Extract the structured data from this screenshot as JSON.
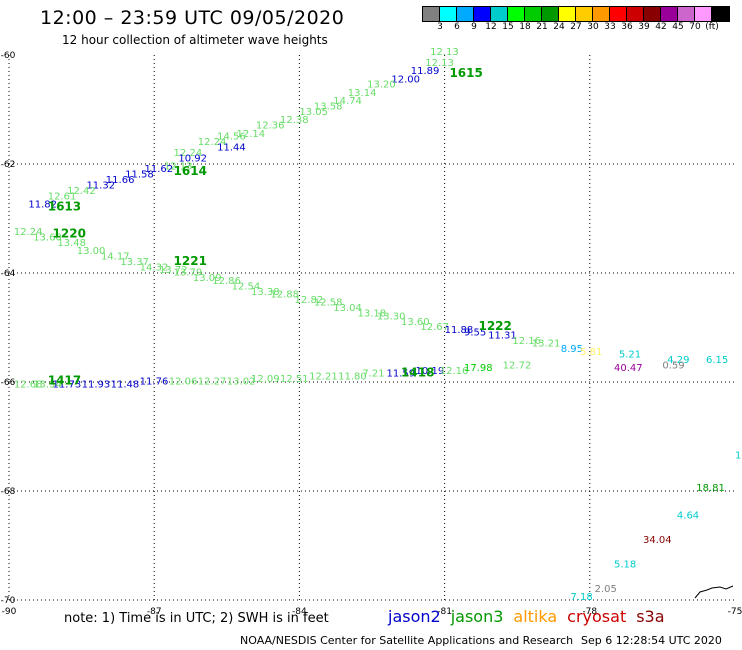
{
  "header": {
    "title": "12:00 – 23:59 UTC 09/05/2020",
    "subtitle": "12 hour collection of altimeter wave heights"
  },
  "colorbar": {
    "colors": [
      "#808080",
      "#00ffff",
      "#00aaff",
      "#0000ff",
      "#00cccc",
      "#00ff00",
      "#00cc00",
      "#009900",
      "#ffff00",
      "#ffcc00",
      "#ff9900",
      "#ff0000",
      "#cc0000",
      "#880000",
      "#990099",
      "#cc66cc",
      "#ff99ff",
      "#000000"
    ],
    "labels": [
      "3",
      "6",
      "9",
      "12",
      "15",
      "18",
      "21",
      "24",
      "27",
      "30",
      "33",
      "36",
      "39",
      "42",
      "45",
      "70",
      "(ft)"
    ]
  },
  "footer": {
    "note": "note: 1) Time is in UTC; 2) SWH is in feet",
    "credit": "NOAA/NESDIS Center for Satellite Applications and Research",
    "timestamp": "Sep  6 12:28:54 UTC 2020"
  },
  "legend": [
    {
      "name": "jason2",
      "color": "#0000cc"
    },
    {
      "name": "jason3",
      "color": "#009900"
    },
    {
      "name": "altika",
      "color": "#ff9900"
    },
    {
      "name": "cryosat",
      "color": "#cc0000"
    },
    {
      "name": "s3a",
      "color": "#880000"
    }
  ],
  "chart_data": {
    "type": "scatter",
    "xlim": [
      -90,
      -75
    ],
    "ylim": [
      -70,
      -60
    ],
    "x_ticks": [
      {
        "value": -90,
        "label": "-90"
      },
      {
        "value": -87,
        "label": "-87"
      },
      {
        "value": -84,
        "label": "-84"
      },
      {
        "value": -81,
        "label": "-81"
      },
      {
        "value": -78,
        "label": "-78"
      },
      {
        "value": -75,
        "label": "-75"
      }
    ],
    "y_ticks": [
      {
        "value": -60,
        "label": "-60"
      },
      {
        "value": -62,
        "label": "-62"
      },
      {
        "value": -64,
        "label": "-64"
      },
      {
        "value": -66,
        "label": "-66"
      },
      {
        "value": -68,
        "label": "-68"
      },
      {
        "value": -70,
        "label": "-70"
      }
    ],
    "grid": true,
    "points": [
      {
        "lon": -81.3,
        "lat": -60.0,
        "text": "12.13",
        "color": "#66dd66"
      },
      {
        "lon": -81.4,
        "lat": -60.2,
        "text": "12.13",
        "color": "#66dd66"
      },
      {
        "lon": -81.7,
        "lat": -60.35,
        "text": "11.89",
        "color": "#0000cc"
      },
      {
        "lon": -82.1,
        "lat": -60.5,
        "text": "12.00",
        "color": "#0000cc"
      },
      {
        "lon": -82.6,
        "lat": -60.6,
        "text": "13.20",
        "color": "#66dd66"
      },
      {
        "lon": -83.0,
        "lat": -60.75,
        "text": "13.14",
        "color": "#66dd66"
      },
      {
        "lon": -83.3,
        "lat": -60.9,
        "text": "14.74",
        "color": "#66dd66"
      },
      {
        "lon": -83.7,
        "lat": -61.0,
        "text": "13.58",
        "color": "#66dd66"
      },
      {
        "lon": -84.0,
        "lat": -61.1,
        "text": "13.05",
        "color": "#66dd66"
      },
      {
        "lon": -84.4,
        "lat": -61.25,
        "text": "12.38",
        "color": "#66dd66"
      },
      {
        "lon": -84.9,
        "lat": -61.35,
        "text": "12.36",
        "color": "#66dd66"
      },
      {
        "lon": -85.3,
        "lat": -61.5,
        "text": "12.14",
        "color": "#66dd66"
      },
      {
        "lon": -85.7,
        "lat": -61.55,
        "text": "14.56",
        "color": "#66dd66"
      },
      {
        "lon": -86.1,
        "lat": -61.65,
        "text": "12.24",
        "color": "#66dd66"
      },
      {
        "lon": -85.7,
        "lat": -61.75,
        "text": "11.44",
        "color": "#0000cc"
      },
      {
        "lon": -86.6,
        "lat": -61.85,
        "text": "12.24",
        "color": "#66dd66"
      },
      {
        "lon": -86.5,
        "lat": -61.95,
        "text": "10.92",
        "color": "#0000cc"
      },
      {
        "lon": -86.8,
        "lat": -62.1,
        "text": "12.13",
        "color": "#66dd66"
      },
      {
        "lon": -87.2,
        "lat": -62.15,
        "text": "11.62",
        "color": "#0000cc"
      },
      {
        "lon": -87.6,
        "lat": -62.25,
        "text": "11.58",
        "color": "#0000cc"
      },
      {
        "lon": -88.0,
        "lat": -62.35,
        "text": "11.66",
        "color": "#0000cc"
      },
      {
        "lon": -88.4,
        "lat": -62.45,
        "text": "11.32",
        "color": "#0000cc"
      },
      {
        "lon": -88.8,
        "lat": -62.55,
        "text": "12.42",
        "color": "#66dd66"
      },
      {
        "lon": -89.2,
        "lat": -62.65,
        "text": "12.61",
        "color": "#66dd66"
      },
      {
        "lon": -89.6,
        "lat": -62.8,
        "text": "11.82",
        "color": "#0000cc"
      },
      {
        "lon": -89.9,
        "lat": -63.3,
        "text": "12.24",
        "color": "#66dd66"
      },
      {
        "lon": -89.5,
        "lat": -63.4,
        "text": "13.60",
        "color": "#66dd66"
      },
      {
        "lon": -89.0,
        "lat": -63.5,
        "text": "13.48",
        "color": "#66dd66"
      },
      {
        "lon": -88.6,
        "lat": -63.65,
        "text": "13.00",
        "color": "#66dd66"
      },
      {
        "lon": -88.1,
        "lat": -63.75,
        "text": "14.17",
        "color": "#66dd66"
      },
      {
        "lon": -87.7,
        "lat": -63.85,
        "text": "13.37",
        "color": "#66dd66"
      },
      {
        "lon": -87.3,
        "lat": -63.95,
        "text": "14.32",
        "color": "#66dd66"
      },
      {
        "lon": -86.9,
        "lat": -64.0,
        "text": "13.72",
        "color": "#66dd66"
      },
      {
        "lon": -86.6,
        "lat": -64.05,
        "text": "13.79",
        "color": "#66dd66"
      },
      {
        "lon": -86.2,
        "lat": -64.15,
        "text": "13.09",
        "color": "#66dd66"
      },
      {
        "lon": -85.8,
        "lat": -64.2,
        "text": "12.86",
        "color": "#66dd66"
      },
      {
        "lon": -85.4,
        "lat": -64.3,
        "text": "12.54",
        "color": "#66dd66"
      },
      {
        "lon": -85.0,
        "lat": -64.4,
        "text": "13.38",
        "color": "#66dd66"
      },
      {
        "lon": -84.6,
        "lat": -64.45,
        "text": "12.88",
        "color": "#66dd66"
      },
      {
        "lon": -84.1,
        "lat": -64.55,
        "text": "12.82",
        "color": "#66dd66"
      },
      {
        "lon": -83.7,
        "lat": -64.6,
        "text": "12.58",
        "color": "#66dd66"
      },
      {
        "lon": -83.3,
        "lat": -64.7,
        "text": "13.04",
        "color": "#66dd66"
      },
      {
        "lon": -82.8,
        "lat": -64.8,
        "text": "13.18",
        "color": "#66dd66"
      },
      {
        "lon": -82.4,
        "lat": -64.85,
        "text": "13.30",
        "color": "#66dd66"
      },
      {
        "lon": -81.9,
        "lat": -64.95,
        "text": "13.60",
        "color": "#66dd66"
      },
      {
        "lon": -81.5,
        "lat": -65.05,
        "text": "12.67",
        "color": "#66dd66"
      },
      {
        "lon": -81.0,
        "lat": -65.1,
        "text": "11.88",
        "color": "#0000cc"
      },
      {
        "lon": -80.6,
        "lat": -65.15,
        "text": "9.55",
        "color": "#0000cc"
      },
      {
        "lon": -80.1,
        "lat": -65.2,
        "text": "11.31",
        "color": "#0000cc"
      },
      {
        "lon": -79.6,
        "lat": -65.3,
        "text": "12.16",
        "color": "#66dd66"
      },
      {
        "lon": -79.2,
        "lat": -65.35,
        "text": "13.21",
        "color": "#66dd66"
      },
      {
        "lon": -78.6,
        "lat": -65.45,
        "text": "8.95",
        "color": "#00aaff"
      },
      {
        "lon": -78.2,
        "lat": -65.5,
        "text": "5.81",
        "color": "#ffee66"
      },
      {
        "lon": -77.4,
        "lat": -65.55,
        "text": "5.21",
        "color": "#00cccc"
      },
      {
        "lon": -76.4,
        "lat": -65.65,
        "text": "4.29",
        "color": "#00cccc"
      },
      {
        "lon": -75.6,
        "lat": -65.65,
        "text": "6.15",
        "color": "#00cccc"
      },
      {
        "lon": -77.5,
        "lat": -65.8,
        "text": "40.47",
        "color": "#990099"
      },
      {
        "lon": -76.5,
        "lat": -65.75,
        "text": "0.59",
        "color": "#808080"
      },
      {
        "lon": -89.9,
        "lat": -66.1,
        "text": "12.68",
        "color": "#66dd66"
      },
      {
        "lon": -89.5,
        "lat": -66.1,
        "text": "13.54",
        "color": "#66dd66"
      },
      {
        "lon": -89.1,
        "lat": -66.1,
        "text": "11.73",
        "color": "#0000cc"
      },
      {
        "lon": -88.5,
        "lat": -66.1,
        "text": "11.93",
        "color": "#0000cc"
      },
      {
        "lon": -87.9,
        "lat": -66.1,
        "text": "11.48",
        "color": "#0000cc"
      },
      {
        "lon": -87.3,
        "lat": -66.05,
        "text": "11.76",
        "color": "#0000cc"
      },
      {
        "lon": -86.7,
        "lat": -66.05,
        "text": "12.06",
        "color": "#66dd66"
      },
      {
        "lon": -86.1,
        "lat": -66.05,
        "text": "12.27",
        "color": "#66dd66"
      },
      {
        "lon": -85.5,
        "lat": -66.05,
        "text": "13.02",
        "color": "#66dd66"
      },
      {
        "lon": -85.0,
        "lat": -66.0,
        "text": "12.09",
        "color": "#66dd66"
      },
      {
        "lon": -84.4,
        "lat": -66.0,
        "text": "12.51",
        "color": "#66dd66"
      },
      {
        "lon": -83.8,
        "lat": -65.95,
        "text": "12.21",
        "color": "#66dd66"
      },
      {
        "lon": -83.2,
        "lat": -65.95,
        "text": "11.80",
        "color": "#66dd66"
      },
      {
        "lon": -82.7,
        "lat": -65.9,
        "text": "7.21",
        "color": "#66dd66"
      },
      {
        "lon": -82.2,
        "lat": -65.9,
        "text": "11.59",
        "color": "#0000cc"
      },
      {
        "lon": -81.6,
        "lat": -65.85,
        "text": "10.19",
        "color": "#0000cc"
      },
      {
        "lon": -81.1,
        "lat": -65.85,
        "text": "12.16",
        "color": "#66dd66"
      },
      {
        "lon": -80.6,
        "lat": -65.8,
        "text": "17.98",
        "color": "#00cc00"
      },
      {
        "lon": -79.8,
        "lat": -65.75,
        "text": "12.72",
        "color": "#66dd66"
      },
      {
        "lon": -75.0,
        "lat": -67.4,
        "text": "1",
        "color": "#00cccc"
      },
      {
        "lon": -75.8,
        "lat": -68.0,
        "text": "18.81",
        "color": "#009900"
      },
      {
        "lon": -76.2,
        "lat": -68.5,
        "text": "4.64",
        "color": "#00cccc"
      },
      {
        "lon": -76.9,
        "lat": -68.95,
        "text": "34.04",
        "color": "#880000"
      },
      {
        "lon": -77.5,
        "lat": -69.4,
        "text": "5.18",
        "color": "#00cccc"
      },
      {
        "lon": -77.9,
        "lat": -69.85,
        "text": "2.05",
        "color": "#808080"
      },
      {
        "lon": -78.4,
        "lat": -70.0,
        "text": "7.18",
        "color": "#00cccc"
      }
    ],
    "pass_labels": [
      {
        "lon": -80.9,
        "lat": -60.4,
        "text": "1615"
      },
      {
        "lon": -86.6,
        "lat": -62.2,
        "text": "1614"
      },
      {
        "lon": -89.2,
        "lat": -62.85,
        "text": "1613"
      },
      {
        "lon": -89.1,
        "lat": -63.35,
        "text": "1220"
      },
      {
        "lon": -86.6,
        "lat": -63.85,
        "text": "1221"
      },
      {
        "lon": -80.3,
        "lat": -65.05,
        "text": "1222"
      },
      {
        "lon": -89.2,
        "lat": -66.05,
        "text": "1417"
      },
      {
        "lon": -81.9,
        "lat": -65.9,
        "text": "1418"
      }
    ]
  }
}
